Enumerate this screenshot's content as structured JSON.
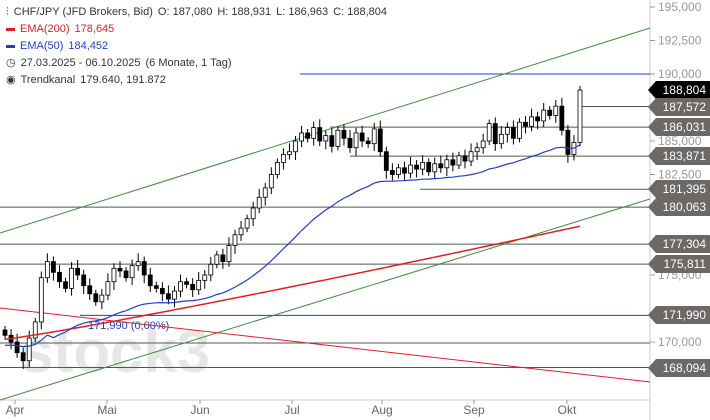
{
  "legend": {
    "instrument": "CHF/JPY (JFD Brokers, Bid)",
    "open": "O: 187,080",
    "high": "H: 188,931",
    "low": "L: 186,963",
    "close": "C: 188,804",
    "ema200_label": "EMA(200)",
    "ema200_value": "178,645",
    "ema50_label": "EMA(50)",
    "ema50_value": "184,452",
    "range": "27.03.2025 - 06.10.2025",
    "range_note": "(6 Monate, 1 Tag)",
    "channel_label": "Trendkanal",
    "channel_value": "179.640, 191.872"
  },
  "annotation": "171,990 (0,00%)",
  "watermark": "stock3",
  "colors": {
    "ema200": "#e02020",
    "ema50": "#1f3fc8",
    "channel": "#3c8c3c",
    "hline": "#555555",
    "last": "#000000",
    "tag": "#6b6866"
  },
  "chart_data": {
    "type": "candlestick",
    "title": "CHF/JPY",
    "ylim": [
      167,
      196
    ],
    "y_ticks": [
      "195,000",
      "192,500",
      "190,000",
      "185,000",
      "182,500",
      "175,000",
      "170,000"
    ],
    "y_tick_values": [
      195,
      192.5,
      190,
      185,
      182.5,
      175,
      170
    ],
    "x_ticks": [
      "Apr",
      "Mai",
      "Jun",
      "Jul",
      "Aug",
      "Sep",
      "Okt"
    ],
    "closes": [
      170.5,
      170.0,
      169.2,
      168.6,
      170.3,
      171.5,
      174.8,
      176.0,
      175.2,
      174.5,
      174.0,
      175.5,
      175.0,
      174.2,
      173.6,
      173.0,
      173.5,
      174.5,
      175.5,
      175.3,
      174.8,
      175.7,
      176.0,
      175.0,
      174.2,
      174.0,
      173.6,
      173.2,
      173.8,
      174.5,
      174.3,
      173.9,
      174.6,
      175.0,
      175.8,
      176.5,
      176.0,
      177.2,
      178.0,
      178.5,
      179.2,
      180.0,
      180.8,
      181.5,
      182.5,
      183.4,
      184.0,
      184.2,
      185.0,
      185.6,
      185.2,
      186.0,
      185.0,
      185.4,
      184.6,
      185.8,
      185.2,
      184.5,
      185.6,
      185.0,
      184.8,
      185.9,
      184.2,
      182.8,
      182.5,
      183.0,
      182.6,
      183.2,
      182.9,
      183.4,
      182.7,
      183.3,
      183.0,
      183.6,
      183.2,
      183.9,
      183.5,
      184.2,
      184.5,
      185.0,
      186.3,
      184.8,
      185.5,
      186.0,
      185.2,
      186.4,
      186.1,
      186.8,
      186.5,
      187.3,
      186.9,
      187.6,
      185.8,
      184.0,
      184.9,
      188.8
    ],
    "price_tags": [
      {
        "label": "188,804",
        "value": 188.804,
        "last": true
      },
      {
        "label": "187,572",
        "value": 187.572
      },
      {
        "label": "186,031",
        "value": 186.031
      },
      {
        "label": "183,871",
        "value": 183.871
      },
      {
        "label": "181,395",
        "value": 181.395
      },
      {
        "label": "180,063",
        "value": 180.063
      },
      {
        "label": "177,304",
        "value": 177.304
      },
      {
        "label": "175,811",
        "value": 175.811
      },
      {
        "label": "171,990",
        "value": 171.99
      },
      {
        "label": "168,094",
        "value": 168.094
      }
    ],
    "series": [
      {
        "name": "EMA(200)",
        "start": 170.2,
        "end": 178.645
      },
      {
        "name": "EMA(50)",
        "start": 169.7,
        "end": 184.452
      }
    ]
  }
}
